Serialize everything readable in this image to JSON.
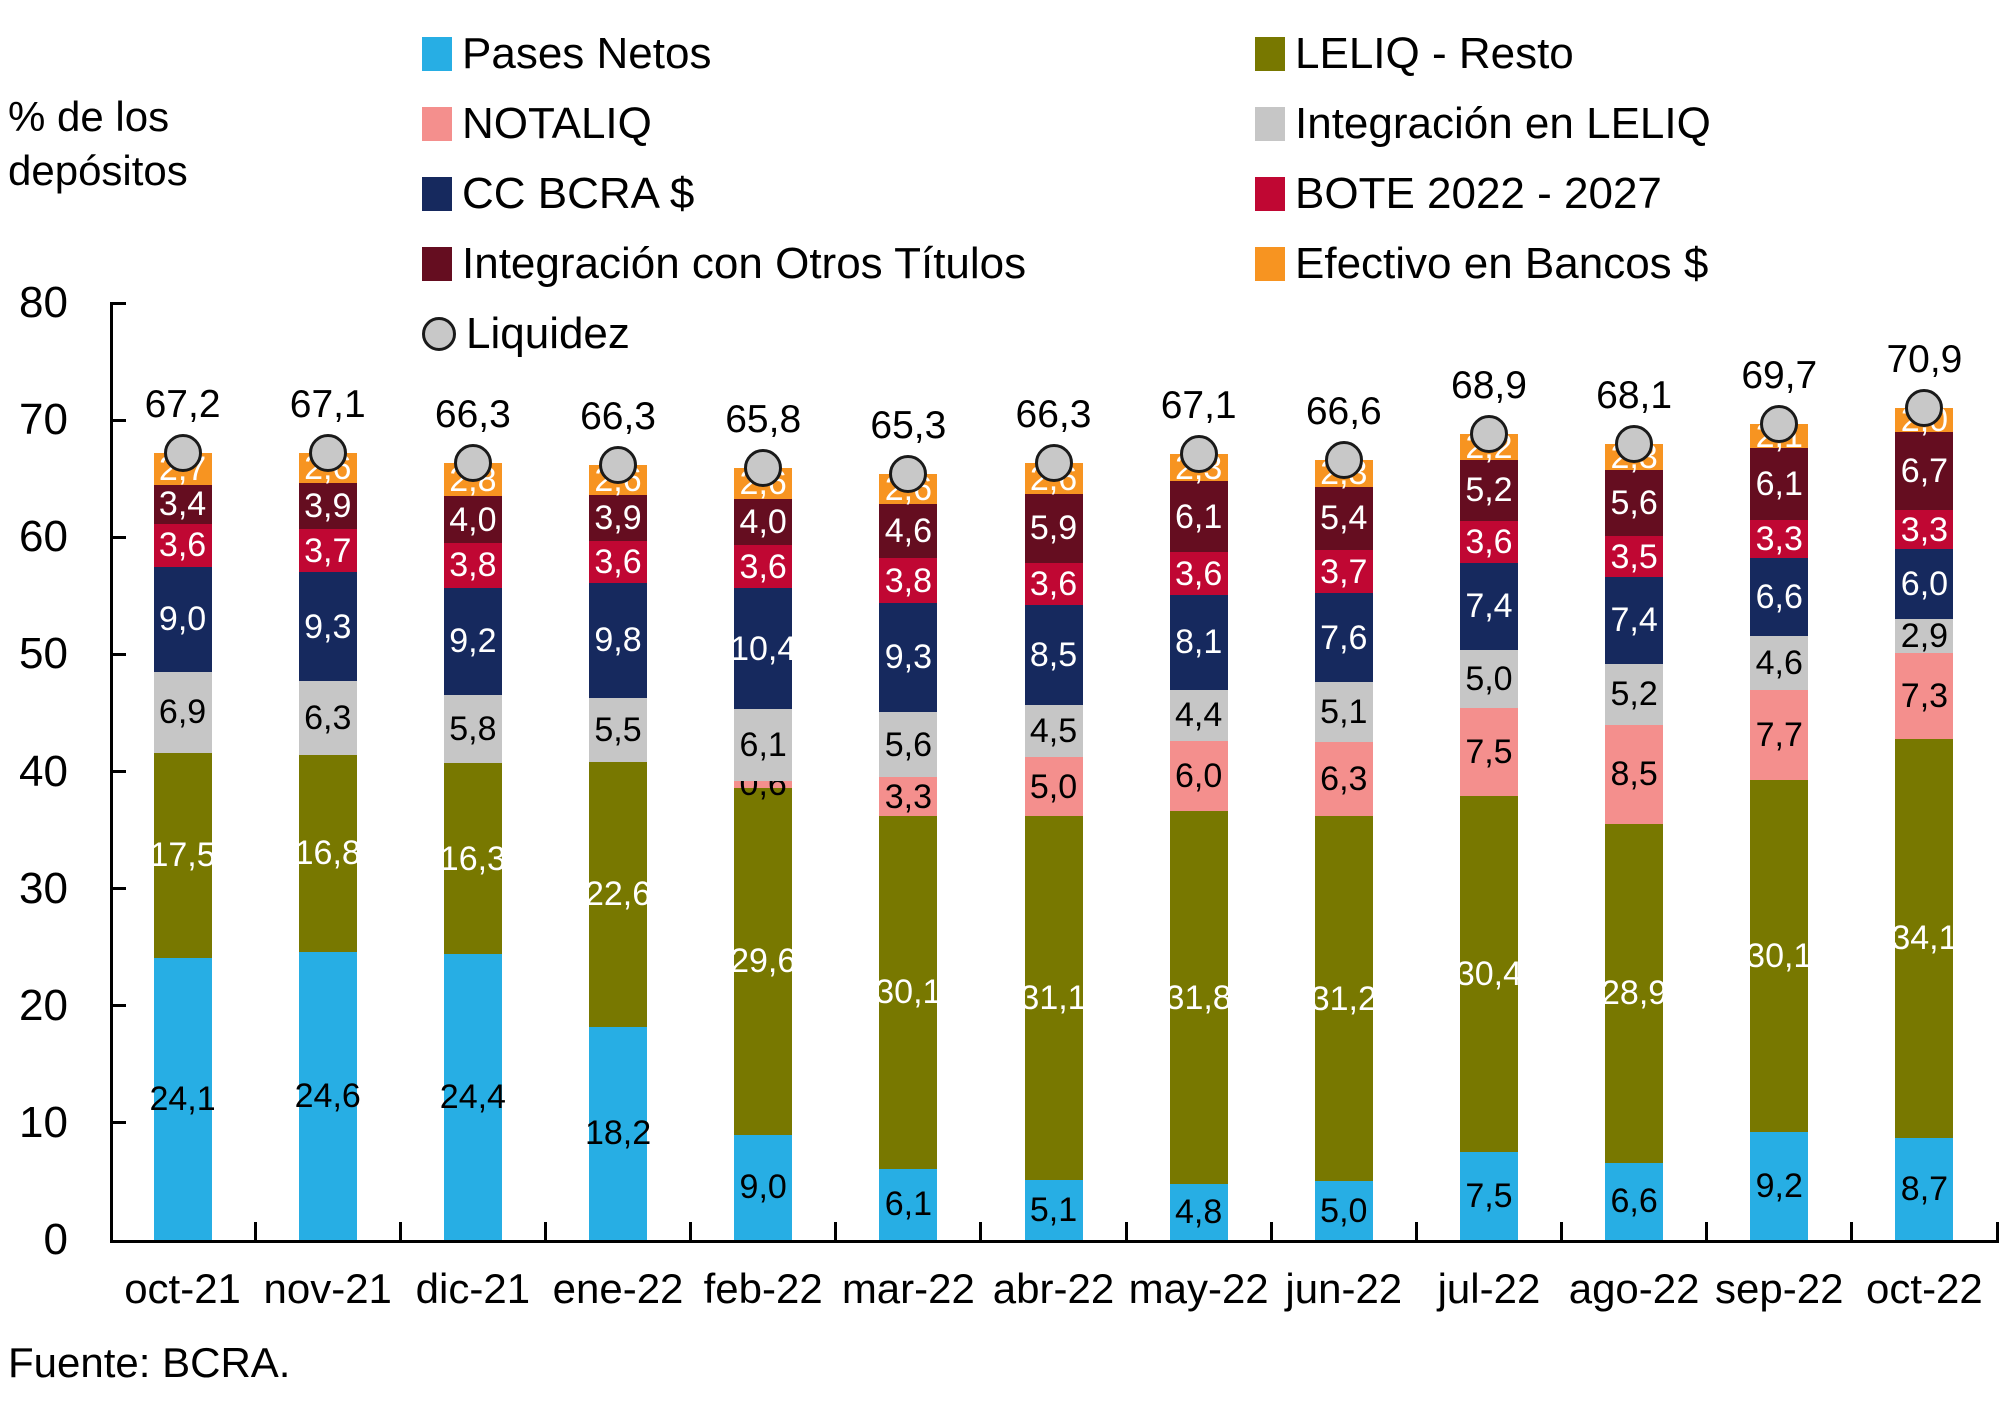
{
  "chart_data": {
    "type": "bar",
    "stacked": true,
    "title": "",
    "ylabel": "% de los depósitos",
    "source": "Fuente: BCRA.",
    "ylim": [
      0,
      80
    ],
    "yticks": [
      0,
      10,
      20,
      30,
      40,
      50,
      60,
      70,
      80
    ],
    "grid": false,
    "legend_position": "top",
    "decimal_separator": ",",
    "categories": [
      "oct-21",
      "nov-21",
      "dic-21",
      "ene-22",
      "feb-22",
      "mar-22",
      "abr-22",
      "may-22",
      "jun-22",
      "jul-22",
      "ago-22",
      "sep-22",
      "oct-22"
    ],
    "series": [
      {
        "name": "Pases Netos",
        "color": "#27AEE4",
        "label_color": "#000000",
        "values": [
          24.1,
          24.6,
          24.4,
          18.2,
          9.0,
          6.1,
          5.1,
          4.8,
          5.0,
          7.5,
          6.6,
          9.2,
          8.7
        ]
      },
      {
        "name": "LELIQ - Resto",
        "color": "#787800",
        "label_color": "#ffffff",
        "values": [
          17.5,
          16.8,
          16.3,
          22.6,
          29.6,
          30.1,
          31.1,
          31.8,
          31.2,
          30.4,
          28.9,
          30.1,
          34.1
        ]
      },
      {
        "name": "NOTALIQ",
        "color": "#F48F8D",
        "label_color": "#000000",
        "values": [
          null,
          null,
          null,
          null,
          0.6,
          3.3,
          5.0,
          6.0,
          6.3,
          7.5,
          8.5,
          7.7,
          7.3
        ]
      },
      {
        "name": "Integración en LELIQ",
        "color": "#C6C6C6",
        "label_color": "#000000",
        "values": [
          6.9,
          6.3,
          5.8,
          5.5,
          6.1,
          5.6,
          4.5,
          4.4,
          5.1,
          5.0,
          5.2,
          4.6,
          2.9
        ]
      },
      {
        "name": "CC BCRA $",
        "color": "#16295E",
        "label_color": "#ffffff",
        "values": [
          9.0,
          9.3,
          9.2,
          9.8,
          10.4,
          9.3,
          8.5,
          8.1,
          7.6,
          7.4,
          7.4,
          6.6,
          6.0
        ]
      },
      {
        "name": "BOTE 2022 - 2027",
        "color": "#C00733",
        "label_color": "#ffffff",
        "values": [
          3.6,
          3.7,
          3.8,
          3.6,
          3.6,
          3.8,
          3.6,
          3.6,
          3.7,
          3.6,
          3.5,
          3.3,
          3.3
        ]
      },
      {
        "name": "Integración con Otros Títulos",
        "color": "#650D20",
        "label_color": "#ffffff",
        "values": [
          3.4,
          3.9,
          4.0,
          3.9,
          4.0,
          4.6,
          5.9,
          6.1,
          5.4,
          5.2,
          5.6,
          6.1,
          6.7
        ]
      },
      {
        "name": "Efectivo en Bancos $",
        "color": "#F79421",
        "label_color": "#ffffff",
        "values": [
          2.7,
          2.6,
          2.8,
          2.6,
          2.6,
          2.6,
          2.6,
          2.3,
          2.3,
          2.2,
          2.3,
          2.1,
          2.0
        ]
      }
    ],
    "marker_series": {
      "name": "Liquidez",
      "marker": "circle",
      "fill": "#C8C8C8",
      "stroke": "#1a1a1a",
      "values": [
        67.2,
        67.1,
        66.3,
        66.3,
        65.8,
        65.3,
        66.3,
        67.1,
        66.6,
        68.9,
        68.1,
        69.7,
        70.9
      ]
    }
  },
  "legend": {
    "left": [
      {
        "label": "Pases Netos",
        "shape": "square",
        "color": "#27AEE4"
      },
      {
        "label": "NOTALIQ",
        "shape": "square",
        "color": "#F48F8D"
      },
      {
        "label": "CC BCRA $",
        "shape": "square",
        "color": "#16295E"
      },
      {
        "label": "Integración con Otros Títulos",
        "shape": "square",
        "color": "#650D20"
      },
      {
        "label": "Liquidez",
        "shape": "circle",
        "color": "#C8C8C8"
      }
    ],
    "right": [
      {
        "label": "LELIQ - Resto",
        "shape": "square",
        "color": "#787800"
      },
      {
        "label": "Integración en LELIQ",
        "shape": "square",
        "color": "#C6C6C6"
      },
      {
        "label": "BOTE 2022 - 2027",
        "shape": "square",
        "color": "#C00733"
      },
      {
        "label": "Efectivo en Bancos $",
        "shape": "square",
        "color": "#F79421"
      }
    ]
  }
}
